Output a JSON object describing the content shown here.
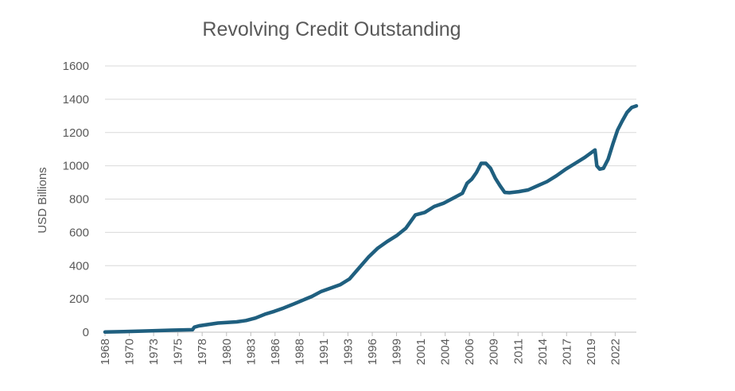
{
  "chart_data": {
    "type": "line",
    "title": "Revolving Credit Outstanding",
    "xlabel": "",
    "ylabel": "USD Billions",
    "ylim": [
      0,
      1600
    ],
    "xlim": [
      1968,
      2024.5
    ],
    "yticks": [
      0,
      200,
      400,
      600,
      800,
      1000,
      1200,
      1400,
      1600
    ],
    "xtick_labels": [
      "1968",
      "1970",
      "1973",
      "1975",
      "1978",
      "1980",
      "1983",
      "1986",
      "1988",
      "1991",
      "1993",
      "1996",
      "1999",
      "2001",
      "2004",
      "2006",
      "2009",
      "2011",
      "2014",
      "2017",
      "2019",
      "2022"
    ],
    "xtick_positions": [
      1968.0,
      1970.58,
      1973.17,
      1975.75,
      1978.33,
      1980.92,
      1983.5,
      1986.08,
      1988.67,
      1991.25,
      1993.83,
      1996.42,
      1999.0,
      2001.58,
      2004.17,
      2006.75,
      2009.33,
      2011.92,
      2014.5,
      2017.08,
      2019.67,
      2022.25
    ],
    "grid": true,
    "legend": "none",
    "color": "#1F5F7F",
    "series": [
      {
        "name": "Revolving Credit Outstanding",
        "x": [
          1968,
          1970,
          1973,
          1975,
          1977.3,
          1977.5,
          1978,
          1980,
          1982,
          1983,
          1984,
          1985,
          1986,
          1987,
          1988,
          1990,
          1991,
          1992,
          1993,
          1994,
          1995,
          1996,
          1997,
          1998,
          1999,
          2000,
          2001,
          2002,
          2003,
          2004,
          2005,
          2006,
          2006.5,
          2007,
          2007.5,
          2008,
          2008.5,
          2009,
          2009.5,
          2010,
          2010.5,
          2011,
          2012,
          2013,
          2014,
          2015,
          2016,
          2017,
          2018,
          2019,
          2020.1,
          2020.3,
          2020.6,
          2021,
          2021.5,
          2022,
          2022.5,
          2023,
          2023.5,
          2024,
          2024.5
        ],
        "y": [
          1,
          4,
          8,
          12,
          15,
          30,
          38,
          55,
          62,
          70,
          85,
          108,
          125,
          145,
          168,
          215,
          245,
          265,
          285,
          320,
          385,
          450,
          505,
          545,
          580,
          625,
          705,
          720,
          755,
          775,
          805,
          835,
          895,
          920,
          960,
          1015,
          1015,
          985,
          925,
          880,
          840,
          838,
          845,
          855,
          880,
          905,
          940,
          980,
          1015,
          1050,
          1095,
          1000,
          980,
          985,
          1040,
          1130,
          1215,
          1270,
          1320,
          1350,
          1360
        ]
      }
    ]
  }
}
